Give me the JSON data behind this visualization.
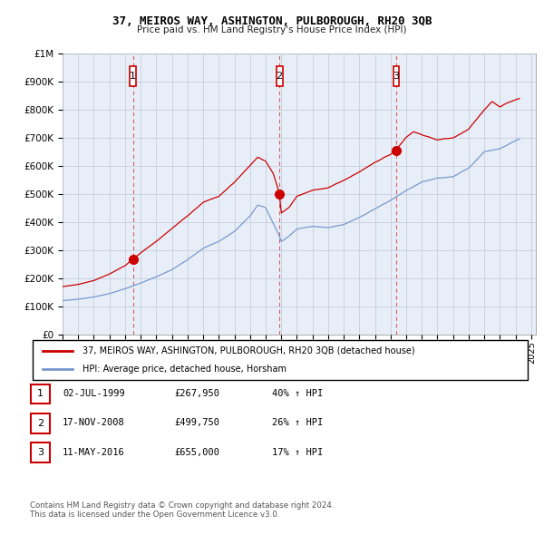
{
  "title": "37, MEIROS WAY, ASHINGTON, PULBOROUGH, RH20 3QB",
  "subtitle": "Price paid vs. HM Land Registry's House Price Index (HPI)",
  "ylim": [
    0,
    1000000
  ],
  "yticks": [
    0,
    100000,
    200000,
    300000,
    400000,
    500000,
    600000,
    700000,
    800000,
    900000,
    1000000
  ],
  "ytick_labels": [
    "£0",
    "£100K",
    "£200K",
    "£300K",
    "£400K",
    "£500K",
    "£600K",
    "£700K",
    "£800K",
    "£900K",
    "£1M"
  ],
  "xlim_start": 1995.0,
  "xlim_end": 2025.3,
  "bg_color": "#e8eef8",
  "grid_color": "#c0c8d8",
  "sale_color": "#cc0000",
  "hpi_color": "#7799cc",
  "sale_label": "37, MEIROS WAY, ASHINGTON, PULBOROUGH, RH20 3QB (detached house)",
  "hpi_label": "HPI: Average price, detached house, Horsham",
  "transactions": [
    {
      "num": 1,
      "date": "02-JUL-1999",
      "price": 267950,
      "pct": "40%",
      "year": 1999.5
    },
    {
      "num": 2,
      "date": "17-NOV-2008",
      "price": 499750,
      "pct": "26%",
      "year": 2008.88
    },
    {
      "num": 3,
      "date": "11-MAY-2016",
      "price": 655000,
      "pct": "17%",
      "year": 2016.36
    }
  ],
  "footer_line1": "Contains HM Land Registry data © Crown copyright and database right 2024.",
  "footer_line2": "This data is licensed under the Open Government Licence v3.0."
}
